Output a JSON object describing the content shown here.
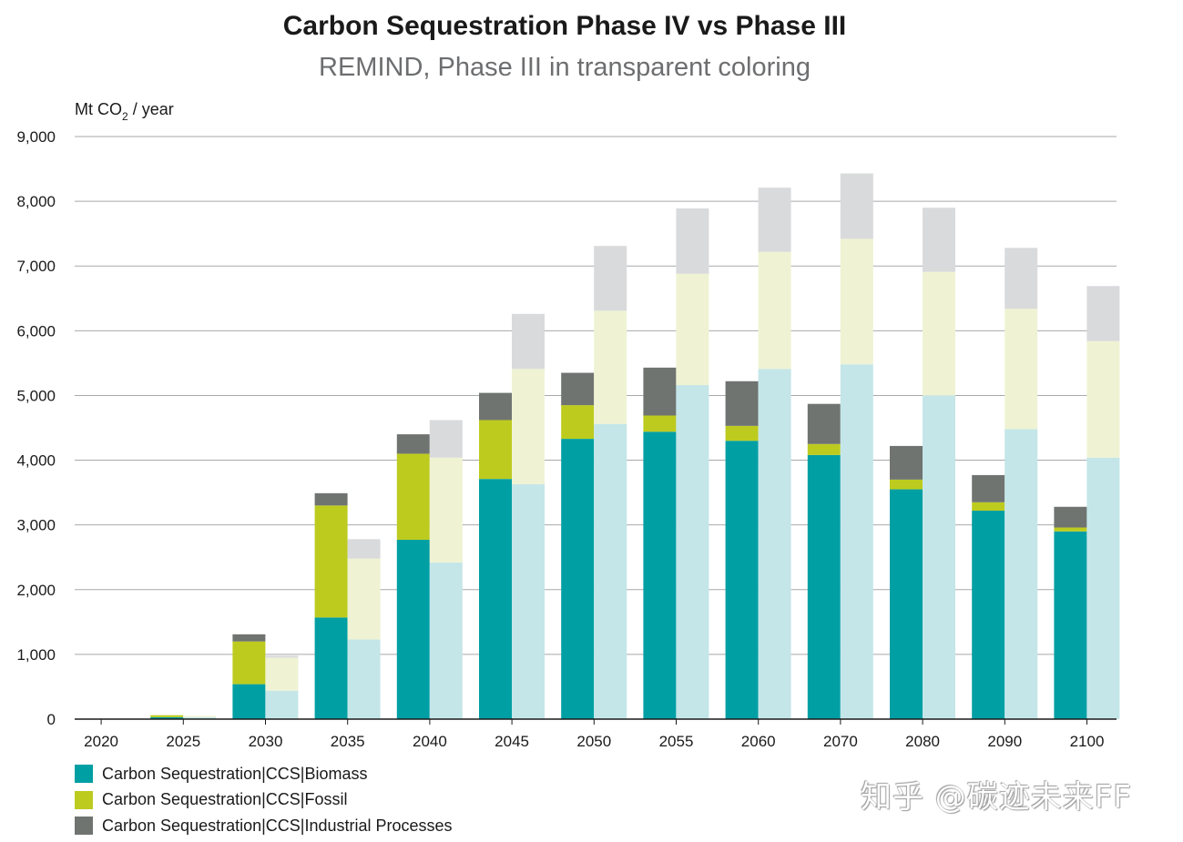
{
  "chart_data": {
    "type": "bar",
    "title": "Carbon Sequestration Phase IV vs Phase III",
    "subtitle": "REMIND, Phase III in transparent coloring",
    "ylabel_main": "Mt CO",
    "ylabel_sub": "2",
    "ylabel_tail": " / year",
    "ylim": [
      0,
      9000
    ],
    "yticks": [
      0,
      1000,
      2000,
      3000,
      4000,
      5000,
      6000,
      7000,
      8000,
      9000
    ],
    "ytick_labels": [
      "0",
      "1,000",
      "2,000",
      "3,000",
      "4,000",
      "5,000",
      "6,000",
      "7,000",
      "8,000",
      "9,000"
    ],
    "categories": [
      "2020",
      "2025",
      "2030",
      "2035",
      "2040",
      "2045",
      "2050",
      "2055",
      "2060",
      "2070",
      "2080",
      "2090",
      "2100"
    ],
    "phase_iv": [
      {
        "name": "Carbon Sequestration|CCS|Biomass",
        "color": "#009fa3",
        "values": [
          0,
          30,
          540,
          1570,
          2770,
          3710,
          4330,
          4440,
          4300,
          4080,
          3550,
          3220,
          2900
        ]
      },
      {
        "name": "Carbon Sequestration|CCS|Fossil",
        "color": "#bdcb1f",
        "values": [
          0,
          30,
          660,
          1730,
          1330,
          910,
          520,
          250,
          230,
          170,
          150,
          130,
          60
        ]
      },
      {
        "name": "Carbon Sequestration|CCS|Industrial Processes",
        "color": "#6f7471",
        "values": [
          0,
          0,
          110,
          190,
          300,
          420,
          500,
          740,
          690,
          620,
          520,
          420,
          320
        ]
      }
    ],
    "phase_iii": [
      {
        "name": "Biomass (Phase III)",
        "color": "#c4e6e8",
        "values": [
          0,
          30,
          440,
          1230,
          2420,
          3630,
          4560,
          5160,
          5410,
          5480,
          5000,
          4480,
          4040
        ]
      },
      {
        "name": "Fossil (Phase III)",
        "color": "#eff3d3",
        "values": [
          0,
          20,
          510,
          1250,
          1620,
          1780,
          1750,
          1720,
          1810,
          1940,
          1910,
          1860,
          1800
        ]
      },
      {
        "name": "Industrial Processes (Phase III)",
        "color": "#d9dadc",
        "values": [
          0,
          0,
          30,
          300,
          580,
          850,
          1000,
          1010,
          990,
          1010,
          990,
          940,
          850
        ]
      }
    ],
    "legend": [
      {
        "label": "Carbon Sequestration|CCS|Biomass",
        "color": "#009fa3"
      },
      {
        "label": "Carbon Sequestration|CCS|Fossil",
        "color": "#bdcb1f"
      },
      {
        "label": "Carbon Sequestration|CCS|Industrial Processes",
        "color": "#6f7471"
      }
    ],
    "legend_position": "bottom-left",
    "grid": true
  },
  "watermark": "知乎 @碳迹未来FF"
}
